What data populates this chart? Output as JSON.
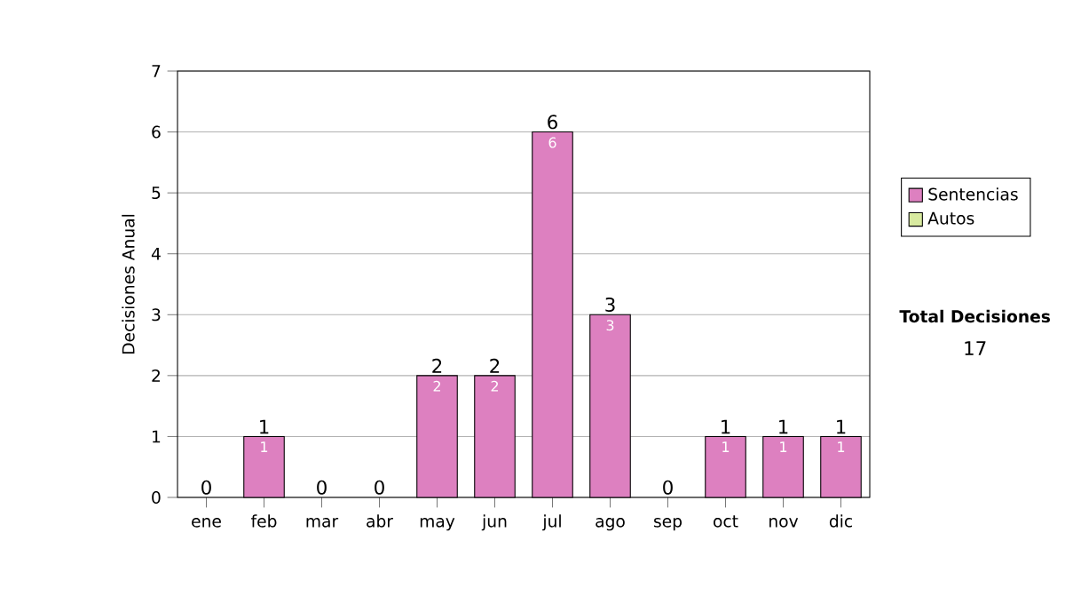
{
  "chart_data": {
    "type": "bar",
    "stacked": true,
    "ylabel": "Decisiones Anual",
    "categories": [
      "ene",
      "feb",
      "mar",
      "abr",
      "may",
      "jun",
      "jul",
      "ago",
      "sep",
      "oct",
      "nov",
      "dic"
    ],
    "series": [
      {
        "name": "Sentencias",
        "color": "#dd80c0",
        "values": [
          0,
          1,
          0,
          0,
          2,
          2,
          6,
          3,
          0,
          1,
          1,
          1
        ],
        "value_labels": [
          null,
          "1",
          null,
          null,
          "2",
          "2",
          "6",
          "3",
          null,
          "1",
          "1",
          "1"
        ]
      },
      {
        "name": "Autos",
        "color": "#d8eaa0",
        "values": [
          0,
          0,
          0,
          0,
          0,
          0,
          0,
          0,
          0,
          0,
          0,
          0
        ]
      }
    ],
    "totals": [
      "0",
      "1",
      "0",
      "0",
      "2",
      "2",
      "6",
      "3",
      "0",
      "1",
      "1",
      "1"
    ],
    "ylim": [
      0,
      7
    ],
    "yticks": [
      0,
      1,
      2,
      3,
      4,
      5,
      6,
      7
    ],
    "grid": "y",
    "legend": "right",
    "annotations": [
      "Total Decisiones",
      "17"
    ]
  }
}
